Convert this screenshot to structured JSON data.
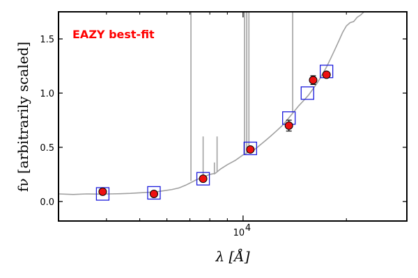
{
  "chart_data": {
    "type": "scatter",
    "title": "",
    "annotation": "EAZY best-fit",
    "xlabel": "λ [Å]",
    "ylabel": "fν [arbitrarily scaled]",
    "xscale": "log",
    "xlim": [
      2900,
      30000
    ],
    "ylim": [
      -0.18,
      1.75
    ],
    "grid": false,
    "yticks": [
      0.0,
      0.5,
      1.0,
      1.5
    ],
    "ytick_labels": [
      "0.0",
      "0.5",
      "1.0",
      "1.5"
    ],
    "xtick_major": [
      10000
    ],
    "xtick_major_label": "10",
    "xtick_major_exponent": "4",
    "xtick_minor": [
      4000,
      5000,
      6000,
      7000,
      8000,
      9000,
      20000,
      30000
    ],
    "colors": {
      "spectrum": "#a0a0a0",
      "observed": "#ee1111",
      "model": "#1a1adc",
      "annotation": "#ff0000"
    },
    "series": [
      {
        "kind": "spectrum-line",
        "points": [
          [
            2900,
            0.07
          ],
          [
            3200,
            0.065
          ],
          [
            3500,
            0.07
          ],
          [
            3800,
            0.068
          ],
          [
            4100,
            0.07
          ],
          [
            4400,
            0.072
          ],
          [
            4700,
            0.075
          ],
          [
            5000,
            0.08
          ],
          [
            5300,
            0.085
          ],
          [
            5600,
            0.09
          ],
          [
            5900,
            0.1
          ],
          [
            6200,
            0.11
          ],
          [
            6500,
            0.125
          ],
          [
            6800,
            0.15
          ],
          [
            7100,
            0.18
          ],
          [
            7300,
            0.2
          ],
          [
            7600,
            0.22
          ],
          [
            8000,
            0.25
          ],
          [
            8300,
            0.26
          ],
          [
            8600,
            0.3
          ],
          [
            9000,
            0.34
          ],
          [
            9500,
            0.38
          ],
          [
            10000,
            0.43
          ],
          [
            10300,
            0.45
          ],
          [
            10700,
            0.47
          ],
          [
            11000,
            0.5
          ],
          [
            11500,
            0.55
          ],
          [
            12000,
            0.6
          ],
          [
            12500,
            0.65
          ],
          [
            13000,
            0.7
          ],
          [
            13500,
            0.76
          ],
          [
            14000,
            0.82
          ],
          [
            14500,
            0.88
          ],
          [
            15000,
            0.93
          ],
          [
            15500,
            0.98
          ],
          [
            16000,
            1.04
          ],
          [
            16500,
            1.1
          ],
          [
            17000,
            1.17
          ],
          [
            17500,
            1.24
          ],
          [
            18000,
            1.32
          ],
          [
            18500,
            1.4
          ],
          [
            19000,
            1.48
          ],
          [
            19500,
            1.56
          ],
          [
            20000,
            1.62
          ],
          [
            20500,
            1.65
          ],
          [
            21000,
            1.66
          ],
          [
            21500,
            1.7
          ],
          [
            22000,
            1.72
          ],
          [
            22500,
            1.75
          ]
        ],
        "emission_lines": [
          {
            "x": 7050,
            "from": 0.19,
            "to": 1.75
          },
          {
            "x": 7650,
            "from": 0.23,
            "to": 0.6
          },
          {
            "x": 8250,
            "from": 0.25,
            "to": 0.36
          },
          {
            "x": 8400,
            "from": 0.27,
            "to": 0.6
          },
          {
            "x": 10100,
            "from": 0.44,
            "to": 1.75
          },
          {
            "x": 10250,
            "from": 0.45,
            "to": 1.75
          },
          {
            "x": 10400,
            "from": 0.46,
            "to": 1.75
          },
          {
            "x": 13950,
            "from": 0.82,
            "to": 1.75
          }
        ]
      },
      {
        "kind": "observed-points",
        "x": [
          3900,
          5500,
          7650,
          10500,
          13600,
          16000,
          17500
        ],
        "y": [
          0.09,
          0.07,
          0.21,
          0.48,
          0.7,
          1.12,
          1.17
        ],
        "yerr": [
          0.0,
          0.0,
          0.0,
          0.0,
          0.05,
          0.04,
          0.02
        ]
      },
      {
        "kind": "model-boxes",
        "x": [
          3900,
          5500,
          7650,
          10500,
          13600,
          15400,
          17500
        ],
        "y": [
          0.07,
          0.08,
          0.21,
          0.49,
          0.77,
          1.0,
          1.2
        ]
      }
    ]
  }
}
